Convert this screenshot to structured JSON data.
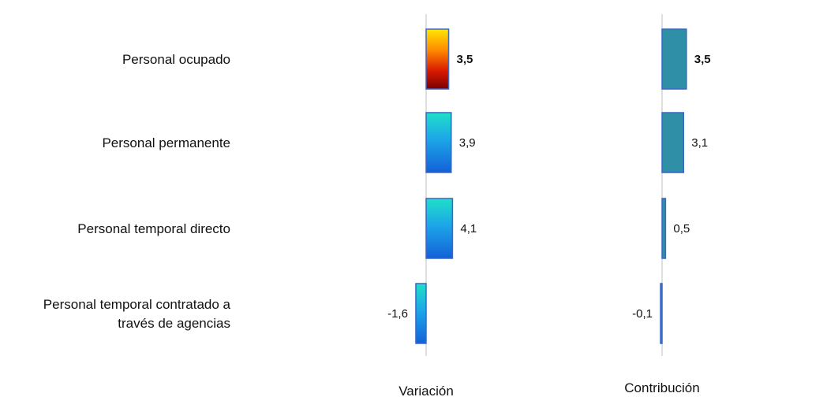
{
  "chart_data": {
    "type": "bar",
    "orientation": "horizontal",
    "categories": [
      [
        "Personal ocupado"
      ],
      [
        "Personal permanente"
      ],
      [
        "Personal temporal directo"
      ],
      [
        "Personal temporal contratado a",
        "través de agencias"
      ]
    ],
    "series": [
      {
        "name": "Variación",
        "values": [
          3.5,
          3.9,
          4.1,
          -1.6
        ],
        "labels": [
          "3,5",
          "3,9",
          "4,1",
          "-1,6"
        ]
      },
      {
        "name": "Contribución",
        "values": [
          3.5,
          3.1,
          0.5,
          -0.1
        ],
        "labels": [
          "3,5",
          "3,1",
          "0,5",
          "-0,1"
        ]
      }
    ],
    "highlight_index": 0,
    "colors": {
      "highlight_gradient": [
        "#FFE600",
        "#FF8A00",
        "#D81A00",
        "#7A0000"
      ],
      "variation_gradient": [
        "#1FE0C8",
        "#1CA6E8",
        "#1460D8"
      ],
      "contribution_fill": "#2E8FA6",
      "bar_stroke": "#3A66C4",
      "axis": "#BFBFBF"
    }
  }
}
